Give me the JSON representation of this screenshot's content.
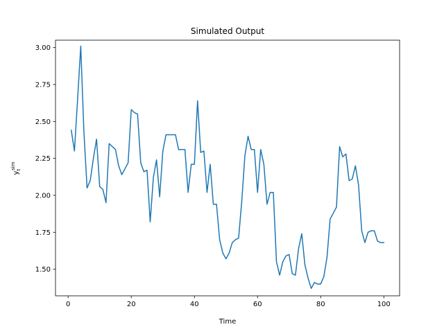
{
  "chart_data": {
    "type": "line",
    "title": "Simulated Output",
    "xlabel": "Time",
    "ylabel": {
      "base": "y",
      "subscript": "t",
      "superscript": "sim"
    },
    "xlim": [
      -4,
      105
    ],
    "ylim": [
      1.32,
      3.05
    ],
    "xticks": [
      0,
      20,
      40,
      60,
      80,
      100
    ],
    "xtick_labels": [
      "0",
      "20",
      "40",
      "60",
      "80",
      "100"
    ],
    "yticks": [
      1.5,
      1.75,
      2.0,
      2.25,
      2.5,
      2.75,
      3.0
    ],
    "ytick_labels": [
      "1.50",
      "1.75",
      "2.00",
      "2.25",
      "2.50",
      "2.75",
      "3.00"
    ],
    "grid": false,
    "legend": null,
    "series": [
      {
        "color": "#1f77b4",
        "x": [
          1,
          2,
          3,
          4,
          5,
          6,
          7,
          8,
          9,
          10,
          11,
          12,
          13,
          14,
          15,
          16,
          17,
          18,
          19,
          20,
          21,
          22,
          23,
          24,
          25,
          26,
          27,
          28,
          29,
          30,
          31,
          32,
          33,
          34,
          35,
          36,
          37,
          38,
          39,
          40,
          41,
          42,
          43,
          44,
          45,
          46,
          47,
          48,
          49,
          50,
          51,
          52,
          53,
          54,
          55,
          56,
          57,
          58,
          59,
          60,
          61,
          62,
          63,
          64,
          65,
          66,
          67,
          68,
          69,
          70,
          71,
          72,
          73,
          74,
          75,
          76,
          77,
          78,
          79,
          80,
          81,
          82,
          83,
          84,
          85,
          86,
          87,
          88,
          89,
          90,
          91,
          92,
          93,
          94,
          95,
          96,
          97,
          98,
          99,
          100
        ],
        "y": [
          2.44,
          2.3,
          2.65,
          3.01,
          2.43,
          2.05,
          2.1,
          2.25,
          2.38,
          2.06,
          2.04,
          1.95,
          2.35,
          2.33,
          2.31,
          2.2,
          2.14,
          2.18,
          2.22,
          2.58,
          2.56,
          2.55,
          2.22,
          2.16,
          2.17,
          1.82,
          2.12,
          2.24,
          1.99,
          2.3,
          2.41,
          2.41,
          2.41,
          2.41,
          2.31,
          2.31,
          2.31,
          2.02,
          2.21,
          2.21,
          2.64,
          2.29,
          2.3,
          2.02,
          2.21,
          1.94,
          1.94,
          1.7,
          1.61,
          1.57,
          1.61,
          1.68,
          1.7,
          1.71,
          1.96,
          2.27,
          2.4,
          2.31,
          2.31,
          2.02,
          2.31,
          2.21,
          1.94,
          2.02,
          2.02,
          1.55,
          1.46,
          1.55,
          1.59,
          1.6,
          1.47,
          1.46,
          1.64,
          1.74,
          1.53,
          1.44,
          1.37,
          1.41,
          1.4,
          1.4,
          1.45,
          1.58,
          1.84,
          1.88,
          1.92,
          2.33,
          2.26,
          2.28,
          2.1,
          2.11,
          2.2,
          2.07,
          1.76,
          1.68,
          1.75,
          1.76,
          1.76,
          1.69,
          1.68,
          1.68
        ]
      }
    ]
  }
}
